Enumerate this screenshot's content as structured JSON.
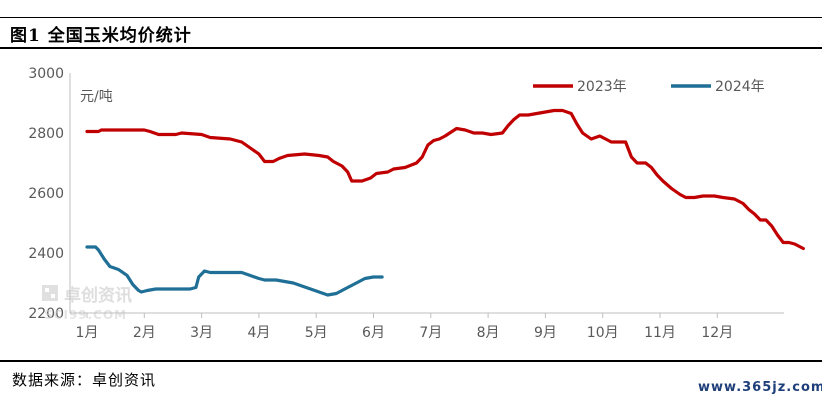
{
  "title": "图1 全国玉米均价统计",
  "source": "数据来源：卓创资讯",
  "website": "www.365jz.com",
  "watermark": "卓创资讯",
  "watermark_sub": "SCI99.COM",
  "colors": {
    "s2023": "#c00000",
    "s2024": "#1f6f96",
    "axis": "#bfbfbf",
    "text": "#595959"
  },
  "chart_data": {
    "type": "line",
    "ylabel": "元/吨",
    "ylim": [
      2200,
      3000
    ],
    "yticks": [
      "2200",
      "2400",
      "2600",
      "2800",
      "3000"
    ],
    "categories": [
      "1月",
      "2月",
      "3月",
      "4月",
      "5月",
      "6月",
      "7月",
      "8月",
      "9月",
      "10月",
      "11月",
      "12月"
    ],
    "legend_position": "top-right",
    "series": [
      {
        "name": "2023年",
        "points": [
          [
            0,
            2805
          ],
          [
            0.2,
            2805
          ],
          [
            0.25,
            2810
          ],
          [
            1.0,
            2810
          ],
          [
            1.1,
            2805
          ],
          [
            1.25,
            2795
          ],
          [
            1.55,
            2795
          ],
          [
            1.65,
            2800
          ],
          [
            2.0,
            2795
          ],
          [
            2.15,
            2785
          ],
          [
            2.5,
            2780
          ],
          [
            2.7,
            2770
          ],
          [
            2.85,
            2750
          ],
          [
            3.0,
            2730
          ],
          [
            3.1,
            2705
          ],
          [
            3.25,
            2705
          ],
          [
            3.35,
            2715
          ],
          [
            3.5,
            2725
          ],
          [
            3.8,
            2730
          ],
          [
            4.05,
            2725
          ],
          [
            4.2,
            2720
          ],
          [
            4.3,
            2705
          ],
          [
            4.45,
            2690
          ],
          [
            4.55,
            2670
          ],
          [
            4.62,
            2640
          ],
          [
            4.8,
            2640
          ],
          [
            4.95,
            2650
          ],
          [
            5.05,
            2665
          ],
          [
            5.25,
            2670
          ],
          [
            5.35,
            2680
          ],
          [
            5.55,
            2685
          ],
          [
            5.75,
            2700
          ],
          [
            5.85,
            2720
          ],
          [
            5.95,
            2760
          ],
          [
            6.05,
            2775
          ],
          [
            6.15,
            2780
          ],
          [
            6.25,
            2790
          ],
          [
            6.45,
            2815
          ],
          [
            6.6,
            2810
          ],
          [
            6.75,
            2800
          ],
          [
            6.9,
            2800
          ],
          [
            7.05,
            2795
          ],
          [
            7.25,
            2800
          ],
          [
            7.35,
            2825
          ],
          [
            7.45,
            2845
          ],
          [
            7.55,
            2860
          ],
          [
            7.7,
            2860
          ],
          [
            7.85,
            2865
          ],
          [
            8.0,
            2870
          ],
          [
            8.15,
            2875
          ],
          [
            8.3,
            2875
          ],
          [
            8.45,
            2865
          ],
          [
            8.55,
            2830
          ],
          [
            8.65,
            2800
          ],
          [
            8.8,
            2780
          ],
          [
            8.95,
            2790
          ],
          [
            9.05,
            2780
          ],
          [
            9.15,
            2770
          ],
          [
            9.4,
            2770
          ],
          [
            9.5,
            2720
          ],
          [
            9.6,
            2700
          ],
          [
            9.75,
            2700
          ],
          [
            9.85,
            2685
          ],
          [
            9.95,
            2660
          ],
          [
            10.05,
            2640
          ],
          [
            10.2,
            2615
          ],
          [
            10.35,
            2595
          ],
          [
            10.45,
            2585
          ],
          [
            10.6,
            2585
          ],
          [
            10.75,
            2590
          ],
          [
            10.95,
            2590
          ],
          [
            11.1,
            2585
          ],
          [
            11.3,
            2580
          ],
          [
            11.45,
            2565
          ],
          [
            11.55,
            2545
          ],
          [
            11.65,
            2530
          ],
          [
            11.75,
            2510
          ],
          [
            11.85,
            2510
          ],
          [
            11.95,
            2490
          ],
          [
            12.05,
            2460
          ],
          [
            12.15,
            2435
          ],
          [
            12.25,
            2435
          ],
          [
            12.35,
            2430
          ],
          [
            12.45,
            2420
          ],
          [
            12.5,
            2415
          ]
        ]
      },
      {
        "name": "2024年",
        "points": [
          [
            0,
            2420
          ],
          [
            0.15,
            2420
          ],
          [
            0.2,
            2410
          ],
          [
            0.3,
            2380
          ],
          [
            0.4,
            2355
          ],
          [
            0.55,
            2345
          ],
          [
            0.7,
            2325
          ],
          [
            0.8,
            2295
          ],
          [
            0.9,
            2275
          ],
          [
            0.95,
            2270
          ],
          [
            1.05,
            2275
          ],
          [
            1.2,
            2280
          ],
          [
            1.8,
            2280
          ],
          [
            1.9,
            2285
          ],
          [
            1.95,
            2320
          ],
          [
            2.05,
            2340
          ],
          [
            2.15,
            2335
          ],
          [
            2.7,
            2335
          ],
          [
            2.85,
            2325
          ],
          [
            3.0,
            2315
          ],
          [
            3.1,
            2310
          ],
          [
            3.3,
            2310
          ],
          [
            3.45,
            2305
          ],
          [
            3.6,
            2300
          ],
          [
            3.75,
            2290
          ],
          [
            3.9,
            2280
          ],
          [
            4.05,
            2270
          ],
          [
            4.2,
            2260
          ],
          [
            4.35,
            2265
          ],
          [
            4.5,
            2280
          ],
          [
            4.6,
            2290
          ],
          [
            4.75,
            2305
          ],
          [
            4.85,
            2315
          ],
          [
            5.0,
            2320
          ],
          [
            5.15,
            2320
          ]
        ]
      }
    ]
  }
}
